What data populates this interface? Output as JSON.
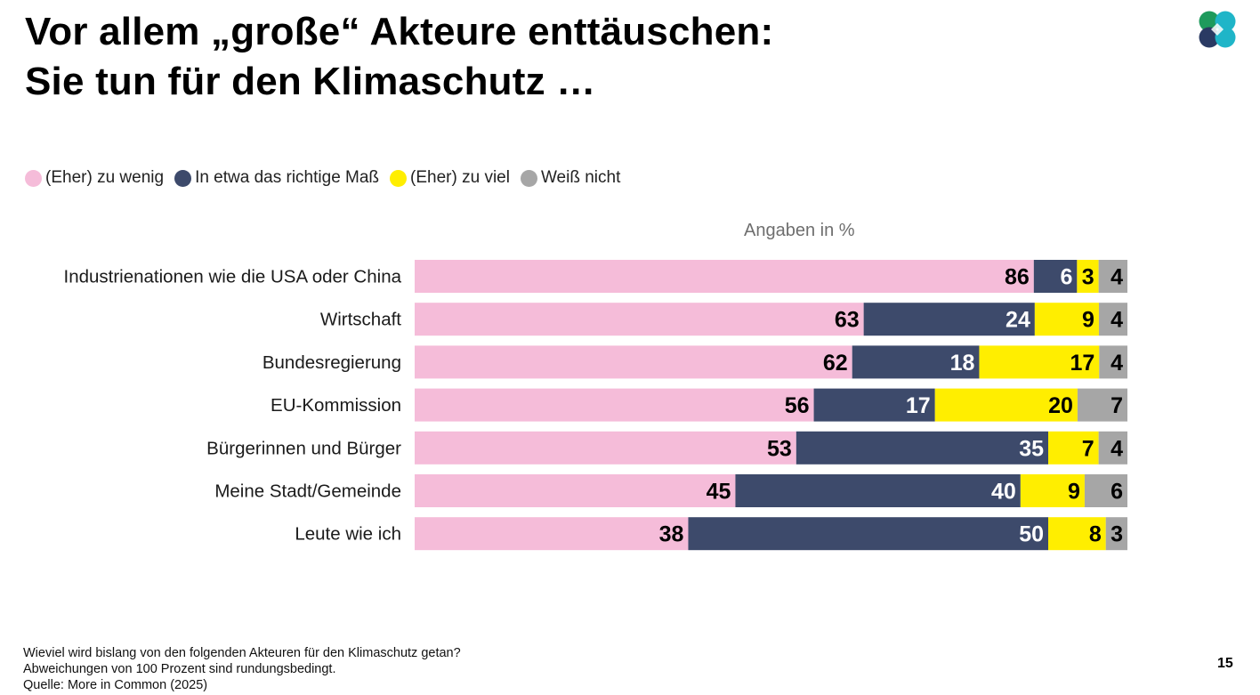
{
  "title": {
    "line1": "Vor allem „große“ Akteure enttäuschen:",
    "line2": "Sie tun für den Klimaschutz …"
  },
  "logo": {
    "icon": "more-in-common-logo-icon",
    "colors": [
      "#1fb5c8",
      "#1e9a5c",
      "#2a3a63"
    ]
  },
  "unit_label": "Angaben in %",
  "footnote": {
    "line1": "Wieviel wird bislang von den folgenden Akteuren für den Klimaschutz getan?",
    "line2": "Abweichungen von 100 Prozent sind rundungsbedingt.",
    "line3": "Quelle: More in Common (2025)"
  },
  "page_number": "15",
  "chart_data": {
    "type": "bar",
    "orientation": "horizontal",
    "stacked": true,
    "title": "Vor allem „große“ Akteure enttäuschen: Sie tun für den Klimaschutz …",
    "xlabel": "Angaben in %",
    "ylabel": "",
    "xlim": [
      0,
      100
    ],
    "grid": false,
    "legend_position": "top-left",
    "categories": [
      "Industrienationen wie die USA oder China",
      "Wirtschaft",
      "Bundesregierung",
      "EU-Kommission",
      "Bürgerinnen und Bürger",
      "Meine Stadt/Gemeinde",
      "Leute wie ich"
    ],
    "series": [
      {
        "name": "(Eher) zu wenig",
        "color": "#f5bcd9",
        "label_color": "#000000",
        "values": [
          86,
          63,
          62,
          56,
          53,
          45,
          38
        ]
      },
      {
        "name": "In etwa das richtige Maß",
        "color": "#3d4a6b",
        "label_color": "#ffffff",
        "values": [
          6,
          24,
          18,
          17,
          35,
          40,
          50
        ]
      },
      {
        "name": "(Eher) zu viel",
        "color": "#ffee00",
        "label_color": "#000000",
        "values": [
          3,
          9,
          17,
          20,
          7,
          9,
          8
        ]
      },
      {
        "name": "Weiß nicht",
        "color": "#a6a6a6",
        "label_color": "#000000",
        "values": [
          4,
          4,
          4,
          7,
          4,
          6,
          3
        ]
      }
    ]
  }
}
